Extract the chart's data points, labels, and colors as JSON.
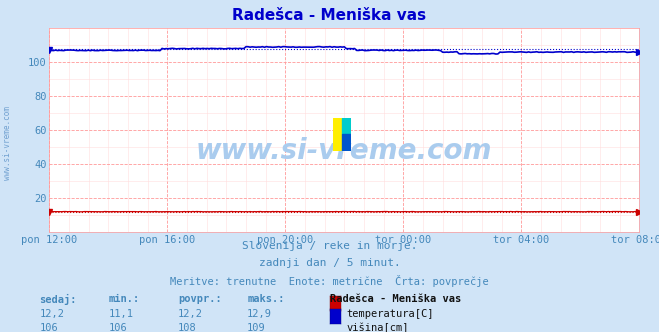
{
  "title": "Radešca - Meniška vas",
  "bg_color": "#d0e4f7",
  "plot_bg_color": "#ffffff",
  "grid_color_major": "#ff9999",
  "grid_color_minor": "#ffdddd",
  "x_tick_labels": [
    "pon 12:00",
    "pon 16:00",
    "pon 20:00",
    "tor 00:00",
    "tor 04:00",
    "tor 08:00"
  ],
  "x_tick_positions": [
    0,
    48,
    96,
    144,
    192,
    240
  ],
  "n_points": 289,
  "temp_avg": 12.2,
  "height_avg": 108,
  "ylim": [
    0,
    120
  ],
  "yticks": [
    20,
    40,
    60,
    80,
    100
  ],
  "temp_color": "#cc0000",
  "height_color": "#0000cc",
  "watermark_text": "www.si-vreme.com",
  "watermark_color": "#aaccee",
  "watermark_fontsize": 20,
  "side_label": "www.si-vreme.com",
  "side_label_color": "#6699cc",
  "subtitle1": "Slovenija / reke in morje.",
  "subtitle2": "zadnji dan / 5 minut.",
  "subtitle3": "Meritve: trenutne  Enote: metrične  Črta: povprečje",
  "text_color": "#4488bb",
  "title_color": "#0000cc",
  "title_fontsize": 11,
  "subtitle_fontsize": 8,
  "legend_title": "Radešca - Meniška vas",
  "legend_temp_label": "temperatura[C]",
  "legend_height_label": "višina[cm]",
  "table_headers": [
    "sedaj:",
    "min.:",
    "povpr.:",
    "maks.:"
  ],
  "table_temp": [
    "12,2",
    "11,1",
    "12,2",
    "12,9"
  ],
  "table_height": [
    "106",
    "106",
    "108",
    "109"
  ],
  "logo_yellow": "#ffee00",
  "logo_cyan": "#00cccc",
  "logo_blue": "#0055cc",
  "temp_height_on_yaxis": 12.2,
  "data_height_on_yaxis": 107.0
}
